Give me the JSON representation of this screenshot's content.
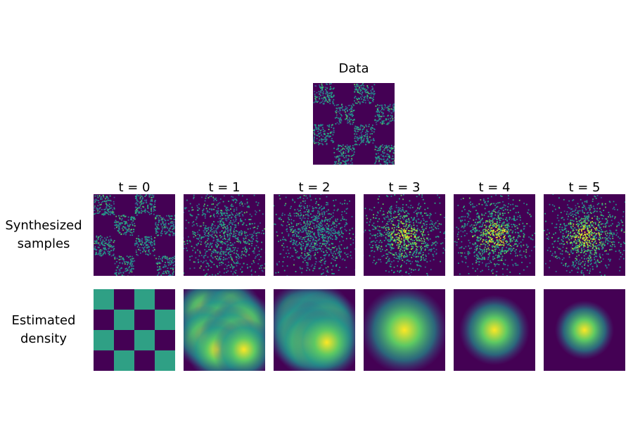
{
  "title": "Data",
  "columns": [
    "t = 0",
    "t = 1",
    "t = 2",
    "t = 3",
    "t = 4",
    "t = 5"
  ],
  "rows": [
    {
      "label_lines": [
        "Synthesized",
        "samples"
      ]
    },
    {
      "label_lines": [
        "Estimated",
        "density"
      ]
    }
  ]
}
